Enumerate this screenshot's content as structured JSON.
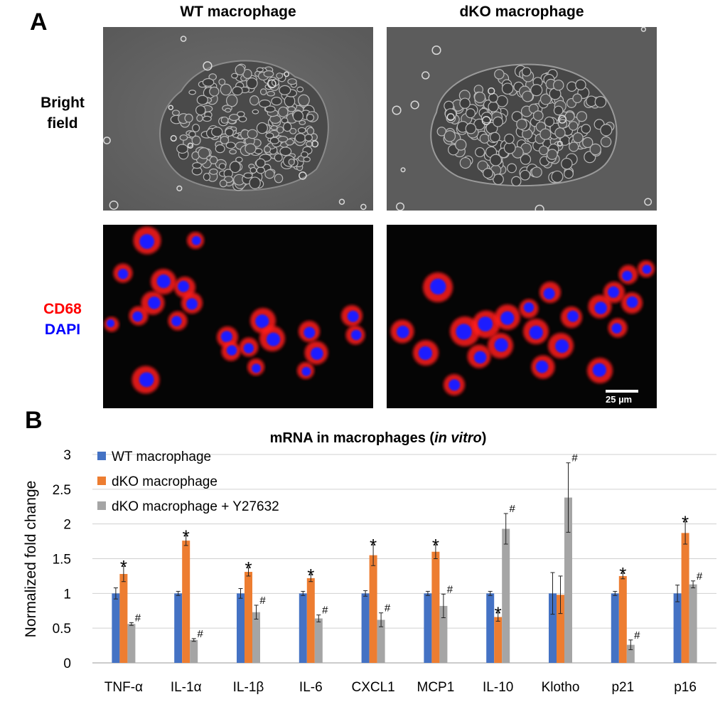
{
  "panel_a": {
    "letter": "A",
    "columns": [
      "WT macrophage",
      "dKO macrophage"
    ],
    "row_bright": [
      "Bright",
      "field"
    ],
    "row_fluor_red": "CD68",
    "row_fluor_blue": "DAPI",
    "scale_bar": "25 µm"
  },
  "panel_b": {
    "letter": "B"
  },
  "colors": {
    "wt": "#4472C4",
    "dko": "#ED7D31",
    "y27632": "#A5A5A5",
    "cd68": "#ff1a1a",
    "dapi": "#1a1aff"
  },
  "chart_data": {
    "type": "bar",
    "title_parts": [
      {
        "text": "mRNA in macrophages (",
        "italic": false
      },
      {
        "text": "in vitro",
        "italic": true
      },
      {
        "text": ")",
        "italic": false
      }
    ],
    "ylabel": "Normalized fold change",
    "ylim": [
      0,
      3
    ],
    "yticks": [
      "0",
      "0.5",
      "1",
      "1.5",
      "2",
      "2.5",
      "3"
    ],
    "grid": true,
    "legend_position": "top-left",
    "categories": [
      "TNF-α",
      "IL-1α",
      "IL-1β",
      "IL-6",
      "CXCL1",
      "MCP1",
      "IL-10",
      "Klotho",
      "p21",
      "p16"
    ],
    "series": [
      {
        "name": "WT macrophage",
        "color": "#4472C4",
        "values": [
          1.0,
          1.0,
          1.0,
          1.0,
          1.0,
          1.0,
          1.0,
          1.0,
          1.0,
          1.0
        ],
        "errors": [
          0.08,
          0.03,
          0.07,
          0.03,
          0.04,
          0.03,
          0.03,
          0.3,
          0.03,
          0.12
        ],
        "marks": [
          "",
          "",
          "",
          "",
          "",
          "",
          "",
          "",
          "",
          ""
        ]
      },
      {
        "name": "dKO macrophage",
        "color": "#ED7D31",
        "values": [
          1.28,
          1.76,
          1.31,
          1.22,
          1.55,
          1.6,
          0.66,
          0.98,
          1.25,
          1.87
        ],
        "errors": [
          0.11,
          0.07,
          0.06,
          0.05,
          0.15,
          0.1,
          0.06,
          0.27,
          0.04,
          0.16
        ],
        "marks": [
          "*",
          "*",
          "*",
          "*",
          "*",
          "*",
          "*",
          "",
          "*",
          "*"
        ]
      },
      {
        "name": "dKO macrophage + Y27632",
        "color": "#A5A5A5",
        "values": [
          0.56,
          0.33,
          0.73,
          0.64,
          0.62,
          0.82,
          1.93,
          2.38,
          0.26,
          1.13
        ],
        "errors": [
          0.02,
          0.02,
          0.1,
          0.05,
          0.1,
          0.17,
          0.22,
          0.5,
          0.07,
          0.05
        ],
        "marks": [
          "#",
          "#",
          "#",
          "#",
          "#",
          "#",
          "#",
          "#",
          "#",
          "#"
        ]
      }
    ]
  }
}
